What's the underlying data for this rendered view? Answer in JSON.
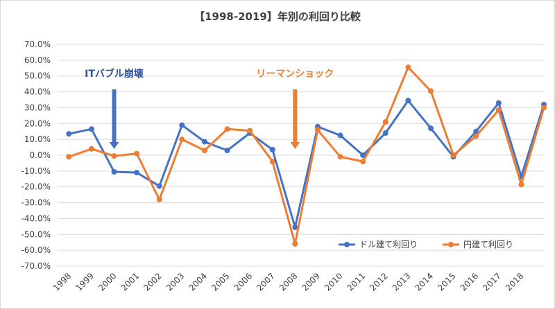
{
  "chart_data": {
    "type": "line",
    "title": "【1998-2019】年別の利回り比較",
    "categories": [
      "1998",
      "1999",
      "2000",
      "2001",
      "2002",
      "2003",
      "2004",
      "2005",
      "2006",
      "2007",
      "2008",
      "2009",
      "2010",
      "2011",
      "2012",
      "2013",
      "2014",
      "2015",
      "2016",
      "2017",
      "2018",
      ""
    ],
    "series": [
      {
        "name": "ドル建て利回り",
        "color": "#4472C4",
        "values": [
          13.5,
          16.5,
          -10.5,
          -11.0,
          -19.5,
          19.0,
          8.5,
          3.0,
          14.0,
          3.5,
          -45.5,
          18.0,
          12.5,
          0.0,
          14.0,
          34.5,
          17.0,
          -1.0,
          15.0,
          33.0,
          -13.5,
          32.0
        ]
      },
      {
        "name": "円建て利回り",
        "color": "#ED7D31",
        "values": [
          -1.0,
          4.0,
          -0.5,
          1.0,
          -28.0,
          10.0,
          3.0,
          16.5,
          15.5,
          -4.0,
          -56.0,
          16.0,
          -1.0,
          -4.0,
          21.0,
          55.5,
          40.5,
          0.0,
          12.0,
          28.5,
          -18.5,
          30.0
        ]
      }
    ],
    "y_ticks": [
      "70.0%",
      "60.0%",
      "50.0%",
      "40.0%",
      "30.0%",
      "20.0%",
      "10.0%",
      "0.0%",
      "-10.0%",
      "-20.0%",
      "-30.0%",
      "-40.0%",
      "-50.0%",
      "-60.0%",
      "-70.0%"
    ],
    "ylim": [
      -70,
      70
    ],
    "grid": true,
    "legend_position": "bottom-right",
    "annotations": [
      {
        "text": "ITバブル崩壊",
        "color": "#2F5597",
        "category": "2000"
      },
      {
        "text": "リーマンショック",
        "color": "#ED7D31",
        "category": "2008"
      }
    ]
  }
}
